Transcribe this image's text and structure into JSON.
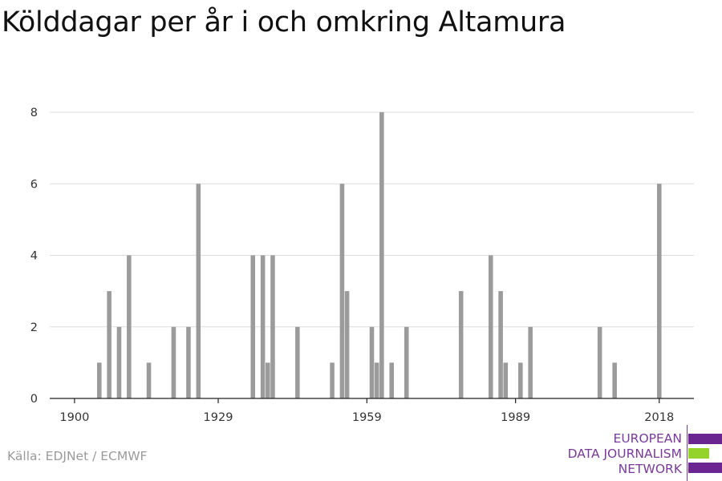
{
  "title": "Kölddagar per år i och omkring Altamura",
  "source": "Källa: EDJNet / ECMWF",
  "logo": {
    "line1": "EUROPEAN",
    "line2": "DATA JOURNALISM",
    "line3": "NETWORK",
    "colors": {
      "purple": "#6b2591",
      "green": "#93d32a"
    }
  },
  "colors": {
    "bar": "#9b9b9b",
    "grid": "#dcdcdc",
    "axis": "#222222",
    "title": "#111111",
    "source": "#9a9a9a"
  },
  "chart_data": {
    "type": "bar",
    "title": "Kölddagar per år i och omkring Altamura",
    "xlabel": "",
    "ylabel": "",
    "xlim": [
      1895,
      2025
    ],
    "ylim": [
      0,
      8
    ],
    "x_ticks": [
      1900,
      1929,
      1959,
      1989,
      2018
    ],
    "y_ticks": [
      0,
      2,
      4,
      6,
      8
    ],
    "grid": true,
    "legend": "none",
    "x": [
      1905,
      1907,
      1909,
      1911,
      1915,
      1920,
      1923,
      1925,
      1936,
      1938,
      1939,
      1940,
      1945,
      1952,
      1954,
      1955,
      1960,
      1961,
      1962,
      1964,
      1967,
      1978,
      1984,
      1986,
      1987,
      1990,
      1992,
      2006,
      2009,
      2018
    ],
    "values": [
      1,
      3,
      2,
      4,
      1,
      2,
      2,
      6,
      4,
      4,
      1,
      4,
      2,
      1,
      6,
      3,
      2,
      1,
      8,
      1,
      2,
      3,
      4,
      3,
      1,
      1,
      2,
      2,
      1,
      6
    ]
  }
}
